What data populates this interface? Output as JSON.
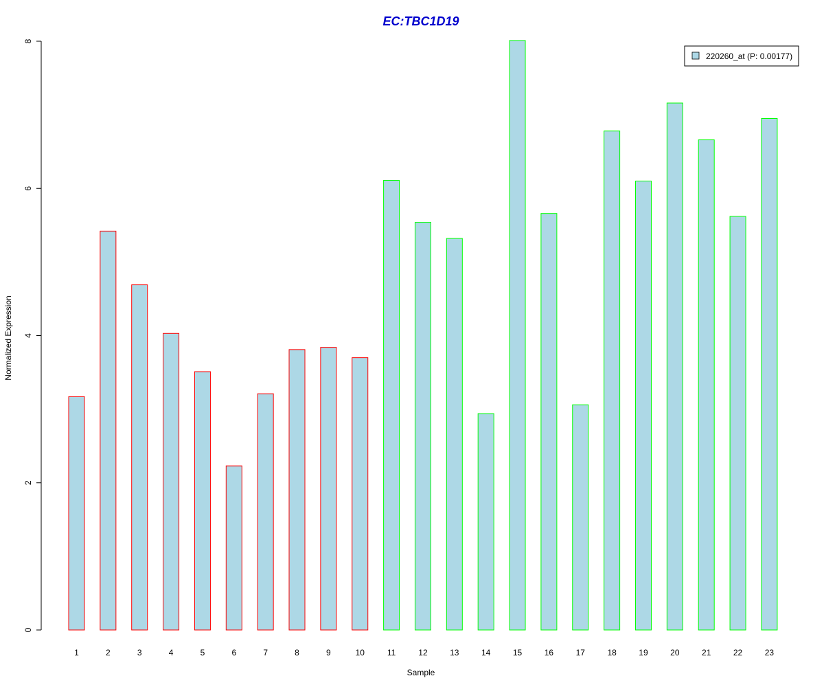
{
  "chart_data": {
    "type": "bar",
    "title": "EC:TBC1D19",
    "xlabel": "Sample",
    "ylabel": "Normalized Expression",
    "ylim": [
      0,
      8
    ],
    "yticks": [
      0,
      2,
      4,
      6,
      8
    ],
    "categories": [
      "1",
      "2",
      "3",
      "4",
      "5",
      "6",
      "7",
      "8",
      "9",
      "10",
      "11",
      "12",
      "13",
      "14",
      "15",
      "16",
      "17",
      "18",
      "19",
      "20",
      "21",
      "22",
      "23"
    ],
    "series": [
      {
        "name": "220260_at (P: 0.00177)",
        "values": [
          3.17,
          5.42,
          4.69,
          4.03,
          3.51,
          2.23,
          3.21,
          3.81,
          3.84,
          3.7,
          6.11,
          5.54,
          5.32,
          2.94,
          8.01,
          5.66,
          3.06,
          6.78,
          6.1,
          7.16,
          6.66,
          5.62,
          6.95
        ]
      }
    ],
    "bar_fill": "#ADD8E6",
    "group_border_colors": [
      "#FF0000",
      "#FF0000",
      "#FF0000",
      "#FF0000",
      "#FF0000",
      "#FF0000",
      "#FF0000",
      "#FF0000",
      "#FF0000",
      "#FF0000",
      "#00FF00",
      "#00FF00",
      "#00FF00",
      "#00FF00",
      "#00FF00",
      "#00FF00",
      "#00FF00",
      "#00FF00",
      "#00FF00",
      "#00FF00",
      "#00FF00",
      "#00FF00",
      "#00FF00"
    ],
    "title_color": "#0000CD",
    "grid": false,
    "legend_position": "top-right"
  }
}
